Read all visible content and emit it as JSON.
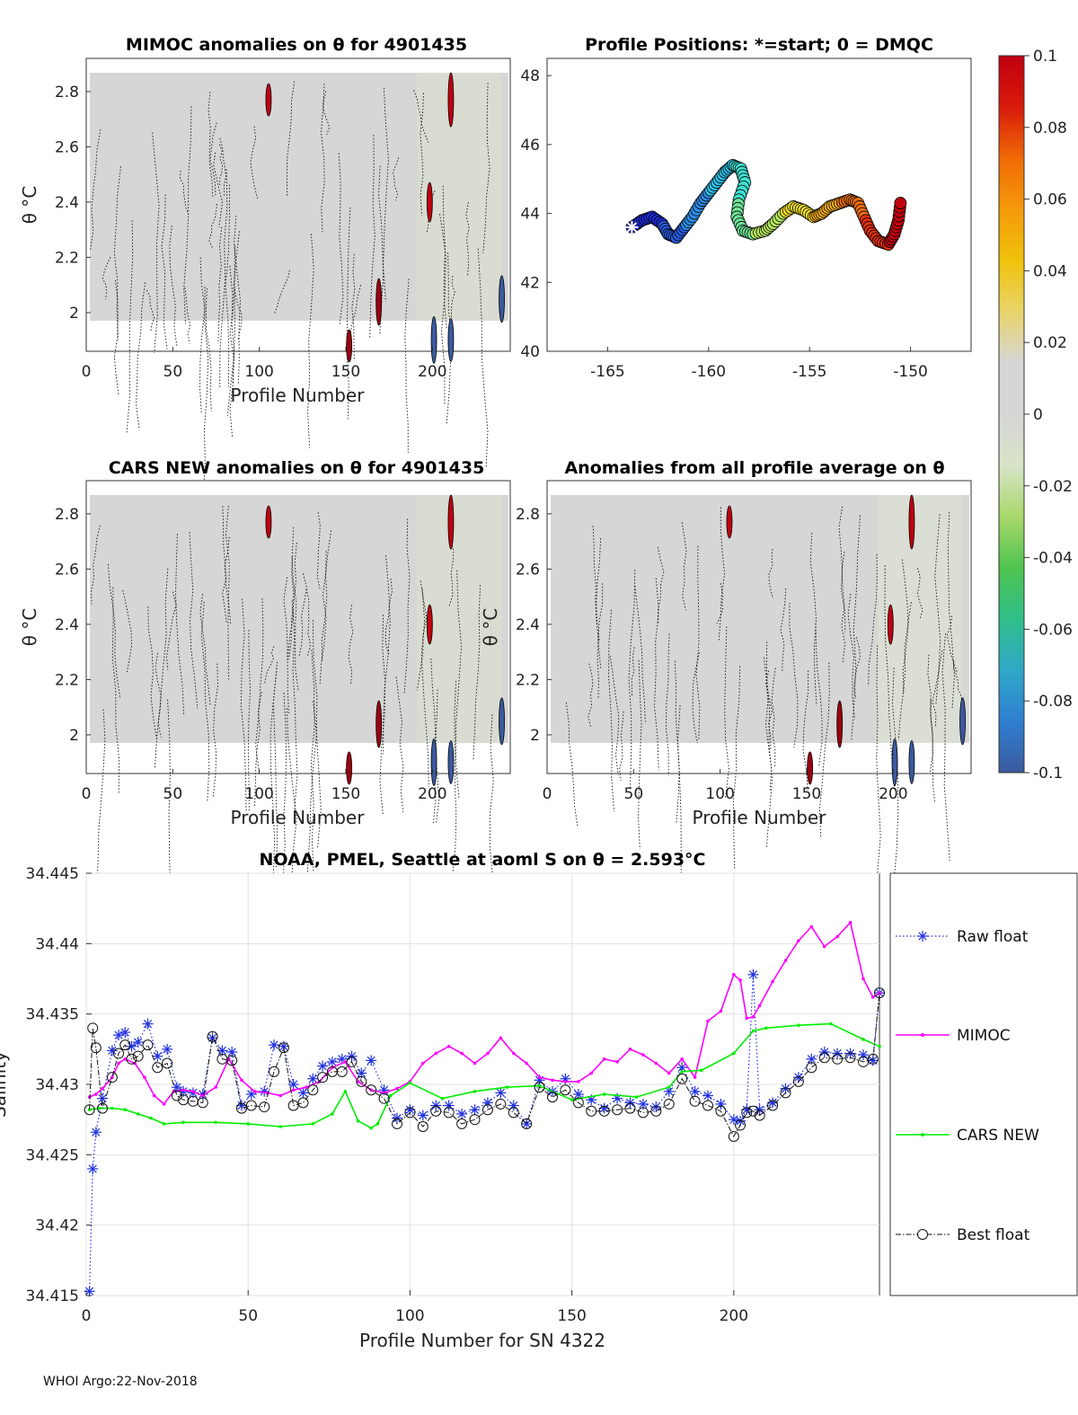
{
  "footer": "WHOI Argo:22-Nov-2018",
  "colormap": {
    "ticks": [
      "0.1",
      "0.08",
      "0.06",
      "0.04",
      "0.02",
      "0",
      "-0.02",
      "-0.04",
      "-0.06",
      "-0.08",
      "-0.1"
    ],
    "stops": [
      "#3b5a9e",
      "#2f7fd0",
      "#2fa8c8",
      "#2fbf8a",
      "#4fc44f",
      "#a9d86b",
      "#d8e4c8",
      "#d6d6d6",
      "#d6d6d6",
      "#e8d46a",
      "#f0c20a",
      "#f59a0a",
      "#f06a06",
      "#d81a0a",
      "#c00010"
    ]
  },
  "panels": {
    "mimoc": {
      "title": "MIMOC anomalies on θ  for 4901435",
      "xlabel": "Profile Number",
      "ylabel": "θ °C",
      "xticks": [
        "0",
        "50",
        "100",
        "150",
        "200"
      ],
      "yticks": [
        "2",
        "2.2",
        "2.4",
        "2.6",
        "2.8"
      ]
    },
    "positions": {
      "title": "Profile Positions: *=start; 0 = DMQC",
      "xticks": [
        "-165",
        "-160",
        "-155",
        "-150"
      ],
      "yticks": [
        "40",
        "42",
        "44",
        "46",
        "48"
      ]
    },
    "cars": {
      "title": "CARS NEW anomalies on θ for 4901435",
      "xlabel": "Profile Number",
      "ylabel": "θ °C",
      "xticks": [
        "0",
        "50",
        "100",
        "150",
        "200"
      ],
      "yticks": [
        "2",
        "2.2",
        "2.4",
        "2.6",
        "2.8"
      ]
    },
    "allavg": {
      "title": "Anomalies from all profile average on θ",
      "xlabel": "Profile Number",
      "ylabel": "θ °C",
      "xticks": [
        "0",
        "50",
        "100",
        "150",
        "200"
      ],
      "yticks": [
        "2",
        "2.2",
        "2.4",
        "2.6",
        "2.8"
      ]
    }
  },
  "chart_data": [
    {
      "type": "scatter",
      "title": "Profile Positions: *=start; 0 = DMQC",
      "xlim": [
        -168,
        -147
      ],
      "ylim": [
        40,
        48.5
      ],
      "color_by": "profile number (blue=start, red=end)",
      "track": [
        [
          -163.8,
          43.6
        ],
        [
          -163.3,
          43.8
        ],
        [
          -162.8,
          43.9
        ],
        [
          -162.3,
          43.7
        ],
        [
          -162.0,
          43.4
        ],
        [
          -161.6,
          43.3
        ],
        [
          -161.2,
          43.6
        ],
        [
          -160.8,
          43.9
        ],
        [
          -160.4,
          44.3
        ],
        [
          -160.0,
          44.6
        ],
        [
          -159.6,
          44.9
        ],
        [
          -159.2,
          45.2
        ],
        [
          -158.8,
          45.4
        ],
        [
          -158.4,
          45.3
        ],
        [
          -158.2,
          44.9
        ],
        [
          -158.5,
          44.4
        ],
        [
          -158.6,
          43.9
        ],
        [
          -158.3,
          43.5
        ],
        [
          -157.8,
          43.4
        ],
        [
          -157.2,
          43.5
        ],
        [
          -156.8,
          43.7
        ],
        [
          -156.3,
          44.0
        ],
        [
          -155.8,
          44.2
        ],
        [
          -155.3,
          44.1
        ],
        [
          -154.8,
          43.9
        ],
        [
          -154.4,
          44.0
        ],
        [
          -154.0,
          44.2
        ],
        [
          -153.5,
          44.3
        ],
        [
          -153.0,
          44.4
        ],
        [
          -152.6,
          44.3
        ],
        [
          -152.3,
          43.9
        ],
        [
          -152.0,
          43.5
        ],
        [
          -151.6,
          43.2
        ],
        [
          -151.1,
          43.1
        ],
        [
          -150.8,
          43.4
        ],
        [
          -150.6,
          43.8
        ],
        [
          -150.5,
          44.3
        ]
      ]
    },
    {
      "type": "line",
      "title": "NOAA, PMEL, Seattle at aoml S on θ = 2.593°C",
      "xlabel": "Profile Number for SN 4322",
      "ylabel": "Salinity",
      "xlim": [
        0,
        245
      ],
      "ylim": [
        34.415,
        34.445
      ],
      "xticks": [
        "0",
        "50",
        "100",
        "150",
        "200"
      ],
      "yticks": [
        "34.415",
        "34.42",
        "34.425",
        "34.43",
        "34.435",
        "34.44",
        "34.445"
      ],
      "legend": [
        "Raw float",
        "MIMOC",
        "CARS NEW",
        "Best float"
      ],
      "legend_placement": "outside-right",
      "series": [
        {
          "name": "Raw float",
          "color": "#2030e0",
          "x": [
            1,
            2,
            3,
            5,
            8,
            10,
            12,
            14,
            16,
            19,
            22,
            25,
            28,
            30,
            33,
            36,
            39,
            42,
            45,
            48,
            51,
            55,
            58,
            61,
            64,
            67,
            70,
            73,
            76,
            79,
            82,
            85,
            88,
            92,
            96,
            100,
            104,
            108,
            112,
            116,
            120,
            124,
            128,
            132,
            136,
            140,
            144,
            148,
            152,
            156,
            160,
            164,
            168,
            172,
            176,
            180,
            184,
            188,
            192,
            196,
            200,
            202,
            204,
            206,
            208,
            212,
            216,
            220,
            224,
            228,
            232,
            236,
            240,
            243,
            245
          ],
          "values": [
            34.4153,
            34.424,
            34.4266,
            34.429,
            34.4324,
            34.4335,
            34.4337,
            34.4327,
            34.433,
            34.4343,
            34.432,
            34.4325,
            34.4298,
            34.4295,
            34.4294,
            34.4293,
            34.4333,
            34.4324,
            34.4323,
            34.4285,
            34.4293,
            34.4295,
            34.4328,
            34.4327,
            34.43,
            34.4294,
            34.4304,
            34.4313,
            34.4316,
            34.4318,
            34.432,
            34.4308,
            34.4317,
            34.4296,
            34.4276,
            34.4282,
            34.4278,
            34.4285,
            34.4285,
            34.4279,
            34.4282,
            34.4287,
            34.4294,
            34.4285,
            34.4272,
            34.4303,
            34.4295,
            34.4304,
            34.4293,
            34.4289,
            34.4283,
            34.429,
            34.4287,
            34.4286,
            34.4284,
            34.4295,
            34.4312,
            34.4295,
            34.4292,
            34.4286,
            34.4275,
            34.4274,
            34.4282,
            34.4378,
            34.4282,
            34.4287,
            34.4297,
            34.4305,
            34.4318,
            34.4323,
            34.4322,
            34.4322,
            34.4321,
            34.4317,
            34.4365
          ]
        },
        {
          "name": "MIMOC",
          "color": "#ff00ff",
          "x": [
            1,
            3,
            5,
            8,
            10,
            12,
            15,
            18,
            21,
            24,
            27,
            30,
            33,
            36,
            40,
            44,
            48,
            52,
            56,
            60,
            64,
            68,
            72,
            76,
            80,
            84,
            88,
            92,
            96,
            100,
            104,
            108,
            112,
            116,
            120,
            124,
            128,
            132,
            136,
            140,
            144,
            148,
            152,
            156,
            160,
            164,
            168,
            172,
            176,
            180,
            184,
            188,
            192,
            196,
            200,
            202,
            204,
            206,
            208,
            212,
            216,
            220,
            224,
            228,
            232,
            236,
            240,
            243,
            245
          ],
          "values": [
            34.4291,
            34.4293,
            34.4297,
            34.4305,
            34.4315,
            34.4318,
            34.4315,
            34.4305,
            34.4292,
            34.4286,
            34.4295,
            34.4296,
            34.4295,
            34.4292,
            34.4298,
            34.4318,
            34.4303,
            34.4295,
            34.4294,
            34.4292,
            34.4296,
            34.4298,
            34.4302,
            34.4312,
            34.4316,
            34.4302,
            34.4296,
            34.4294,
            34.4297,
            34.4302,
            34.4315,
            34.4322,
            34.4327,
            34.4322,
            34.4315,
            34.4322,
            34.4333,
            34.4322,
            34.4315,
            34.4305,
            34.4303,
            34.4302,
            34.4302,
            34.4308,
            34.4318,
            34.4316,
            34.4325,
            34.4321,
            34.4315,
            34.4308,
            34.4318,
            34.4305,
            34.4345,
            34.4352,
            34.4378,
            34.4374,
            34.4347,
            34.4348,
            34.4356,
            34.4373,
            34.4388,
            34.4402,
            34.4412,
            34.4398,
            34.4405,
            34.4415,
            34.4375,
            34.4362,
            34.4365
          ]
        },
        {
          "name": "CARS NEW",
          "color": "#00ee00",
          "x": [
            1,
            4,
            8,
            12,
            16,
            20,
            24,
            30,
            40,
            50,
            60,
            70,
            76,
            80,
            84,
            88,
            90,
            94,
            100,
            110,
            120,
            130,
            140,
            150,
            160,
            170,
            180,
            184,
            190,
            200,
            206,
            210,
            220,
            230,
            240,
            245
          ],
          "values": [
            34.4282,
            34.4283,
            34.4283,
            34.4282,
            34.4279,
            34.4276,
            34.4272,
            34.4273,
            34.4273,
            34.4272,
            34.427,
            34.4272,
            34.4279,
            34.4295,
            34.4274,
            34.4269,
            34.4272,
            34.4292,
            34.4301,
            34.429,
            34.4295,
            34.4298,
            34.4299,
            34.4289,
            34.4293,
            34.4291,
            34.4298,
            34.4309,
            34.431,
            34.4322,
            34.4338,
            34.434,
            34.4342,
            34.4343,
            34.4332,
            34.4327
          ]
        },
        {
          "name": "Best float",
          "color": "#111111",
          "x": [
            1,
            2,
            3,
            5,
            8,
            10,
            12,
            14,
            16,
            19,
            22,
            25,
            28,
            30,
            33,
            36,
            39,
            42,
            45,
            48,
            51,
            55,
            58,
            61,
            64,
            67,
            70,
            73,
            76,
            79,
            82,
            85,
            88,
            92,
            96,
            100,
            104,
            108,
            112,
            116,
            120,
            124,
            128,
            132,
            136,
            140,
            144,
            148,
            152,
            156,
            160,
            164,
            168,
            172,
            176,
            180,
            184,
            188,
            192,
            196,
            200,
            202,
            204,
            206,
            208,
            212,
            216,
            220,
            224,
            228,
            232,
            236,
            240,
            243,
            245
          ],
          "values": [
            34.4282,
            34.434,
            34.4326,
            34.4283,
            34.4305,
            34.4322,
            34.4328,
            34.4318,
            34.432,
            34.4328,
            34.4312,
            34.4315,
            34.4292,
            34.4289,
            34.4288,
            34.4287,
            34.4334,
            34.4318,
            34.4317,
            34.4283,
            34.4285,
            34.4284,
            34.4309,
            34.4326,
            34.4285,
            34.4287,
            34.4296,
            34.4305,
            34.4309,
            34.4309,
            34.4316,
            34.4302,
            34.4296,
            34.429,
            34.4272,
            34.428,
            34.427,
            34.4281,
            34.428,
            34.4272,
            34.4275,
            34.4282,
            34.4286,
            34.428,
            34.4272,
            34.4298,
            34.4291,
            34.4296,
            34.4287,
            34.4281,
            34.4281,
            34.4282,
            34.4283,
            34.428,
            34.4281,
            34.4286,
            34.4304,
            34.4288,
            34.4285,
            34.4281,
            34.4263,
            34.4271,
            34.428,
            34.4281,
            34.4278,
            34.4285,
            34.4294,
            34.4302,
            34.4312,
            34.4319,
            34.4318,
            34.4319,
            34.4316,
            34.4318,
            34.4365
          ]
        }
      ]
    }
  ]
}
